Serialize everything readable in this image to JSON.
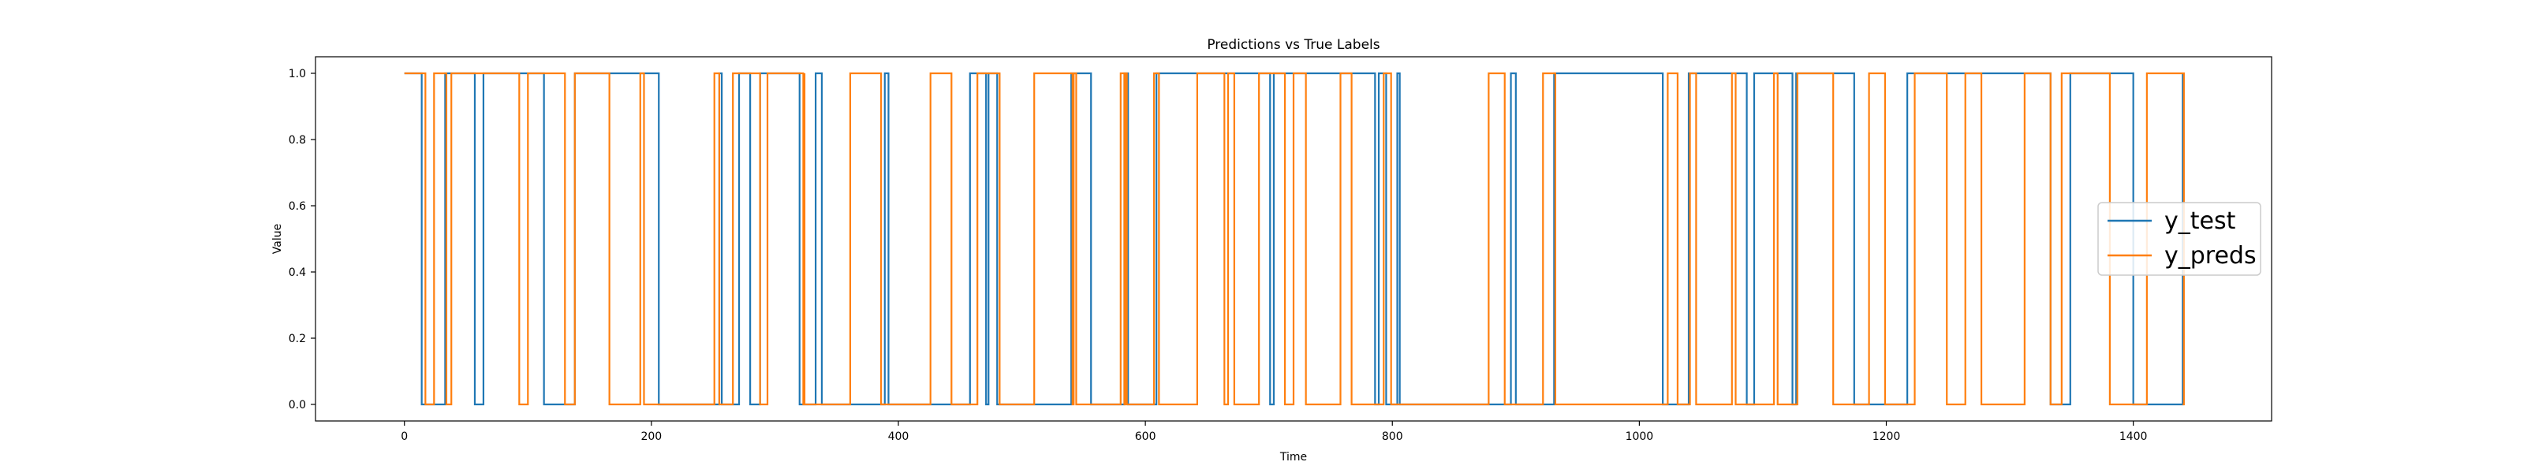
{
  "chart_data": {
    "type": "line",
    "title": "Predictions vs True Labels",
    "xlabel": "Time",
    "ylabel": "Value",
    "xlim": [
      -72,
      1512
    ],
    "ylim": [
      -0.05,
      1.05
    ],
    "x_ticks": [
      0,
      200,
      400,
      600,
      800,
      1000,
      1200,
      1400
    ],
    "y_ticks": [
      0.0,
      0.2,
      0.4,
      0.6,
      0.8,
      1.0
    ],
    "y_tick_labels": [
      "0.0",
      "0.2",
      "0.4",
      "0.6",
      "0.8",
      "1.0"
    ],
    "grid": false,
    "legend_position": "right",
    "series": [
      {
        "name": "y_test",
        "color": "#1f77b4",
        "x_end": 1440,
        "start_value": 1,
        "transitions": [
          14,
          33,
          57,
          64,
          113,
          138,
          206,
          255,
          257,
          271,
          280,
          288,
          320,
          333,
          338,
          389,
          392,
          458,
          471,
          473,
          480,
          540,
          556,
          583,
          586,
          609,
          701,
          704,
          786,
          789,
          795,
          804,
          806,
          896,
          900,
          931,
          1019,
          1040,
          1087,
          1093,
          1124,
          1127,
          1174,
          1217,
          1333,
          1349,
          1400,
          1440
        ]
      },
      {
        "name": "y_preds",
        "color": "#ff7f0e",
        "x_end": 1440,
        "start_value": 1,
        "transitions": [
          17,
          24,
          34,
          38,
          93,
          100,
          130,
          138,
          166,
          191,
          194,
          251,
          255,
          266,
          288,
          294,
          323,
          324,
          324,
          361,
          386,
          426,
          443,
          464,
          482,
          510,
          542,
          541,
          544,
          580,
          584,
          583,
          585,
          607,
          611,
          642,
          664,
          667,
          672,
          692,
          713,
          720,
          730,
          758,
          767,
          793,
          799,
          878,
          891,
          922,
          932,
          1023,
          1031,
          1041,
          1046,
          1075,
          1078,
          1109,
          1112,
          1128,
          1157,
          1186,
          1199,
          1223,
          1249,
          1264,
          1277,
          1312,
          1333,
          1342,
          1381,
          1411,
          1441
        ]
      }
    ]
  }
}
